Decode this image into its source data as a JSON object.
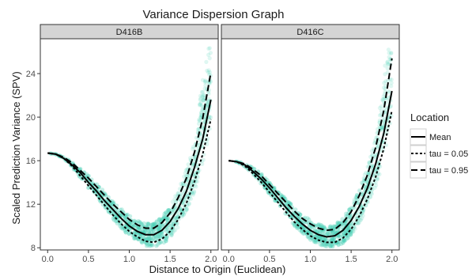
{
  "chart_data": {
    "type": "scatter",
    "title": "Variance Dispersion Graph",
    "xlabel": "Distance to Origin (Euclidean)",
    "ylabel": "Scaled Prediction Variance (SPV)",
    "xlim": [
      -0.08,
      2.08
    ],
    "ylim": [
      7.8,
      27.2
    ],
    "x_ticks": [
      0.0,
      0.5,
      1.0,
      1.5,
      2.0
    ],
    "x_tick_labels": [
      "0.0",
      "0.5",
      "1.0",
      "1.5",
      "2.0"
    ],
    "y_ticks": [
      8,
      12,
      16,
      20,
      24
    ],
    "y_tick_labels": [
      "8",
      "12",
      "16",
      "20",
      "24"
    ],
    "grid": false,
    "point_color": "#4fd1b8",
    "line_color": "#000000",
    "legend": {
      "title": "Location",
      "placement": "right",
      "entries": [
        {
          "label": "Mean",
          "line_style": "solid"
        },
        {
          "label": "tau = 0.05",
          "line_style": "dotted"
        },
        {
          "label": "tau = 0.95",
          "line_style": "dashed"
        }
      ]
    },
    "panels": [
      {
        "label": "D416B",
        "series": [
          {
            "name": "Mean",
            "style": "solid",
            "x": [
              0.0,
              0.1,
              0.2,
              0.3,
              0.4,
              0.5,
              0.6,
              0.7,
              0.8,
              0.9,
              1.0,
              1.1,
              1.2,
              1.3,
              1.4,
              1.5,
              1.6,
              1.7,
              1.8,
              1.9,
              2.0
            ],
            "y": [
              16.7,
              16.6,
              16.2,
              15.6,
              14.9,
              14.0,
              13.2,
              12.3,
              11.5,
              10.7,
              10.0,
              9.5,
              9.2,
              9.2,
              9.6,
              10.4,
              11.6,
              13.2,
              15.4,
              18.0,
              21.6
            ]
          },
          {
            "name": "tau = 0.05",
            "style": "dotted",
            "x": [
              0.0,
              0.1,
              0.2,
              0.3,
              0.4,
              0.5,
              0.6,
              0.7,
              0.8,
              0.9,
              1.0,
              1.1,
              1.2,
              1.3,
              1.4,
              1.5,
              1.6,
              1.7,
              1.8,
              1.9,
              2.0
            ],
            "y": [
              16.7,
              16.6,
              16.2,
              15.5,
              14.6,
              13.7,
              12.8,
              11.9,
              11.0,
              10.2,
              9.5,
              9.0,
              8.6,
              8.5,
              8.8,
              9.5,
              10.6,
              12.1,
              14.1,
              16.6,
              19.8
            ]
          },
          {
            "name": "tau = 0.95",
            "style": "dashed",
            "x": [
              0.0,
              0.1,
              0.2,
              0.3,
              0.4,
              0.5,
              0.6,
              0.7,
              0.8,
              0.9,
              1.0,
              1.1,
              1.2,
              1.3,
              1.4,
              1.5,
              1.6,
              1.7,
              1.8,
              1.9,
              2.0
            ],
            "y": [
              16.7,
              16.6,
              16.3,
              15.8,
              15.1,
              14.4,
              13.6,
              12.8,
              12.0,
              11.3,
              10.6,
              10.1,
              9.8,
              9.8,
              10.3,
              11.2,
              12.6,
              14.4,
              16.8,
              19.9,
              24.1
            ]
          }
        ]
      },
      {
        "label": "D416C",
        "series": [
          {
            "name": "Mean",
            "style": "solid",
            "x": [
              0.0,
              0.1,
              0.2,
              0.3,
              0.4,
              0.5,
              0.6,
              0.7,
              0.8,
              0.9,
              1.0,
              1.1,
              1.2,
              1.3,
              1.4,
              1.5,
              1.6,
              1.7,
              1.8,
              1.9,
              2.0
            ],
            "y": [
              16.0,
              15.9,
              15.6,
              15.0,
              14.3,
              13.5,
              12.6,
              11.7,
              10.9,
              10.2,
              9.6,
              9.2,
              9.0,
              9.1,
              9.6,
              10.5,
              11.8,
              13.5,
              15.7,
              18.5,
              22.4
            ]
          },
          {
            "name": "tau = 0.05",
            "style": "dotted",
            "x": [
              0.0,
              0.1,
              0.2,
              0.3,
              0.4,
              0.5,
              0.6,
              0.7,
              0.8,
              0.9,
              1.0,
              1.1,
              1.2,
              1.3,
              1.4,
              1.5,
              1.6,
              1.7,
              1.8,
              1.9,
              2.0
            ],
            "y": [
              16.0,
              15.9,
              15.5,
              14.8,
              14.0,
              13.1,
              12.2,
              11.3,
              10.4,
              9.7,
              9.1,
              8.7,
              8.5,
              8.5,
              8.9,
              9.7,
              10.9,
              12.5,
              14.5,
              17.1,
              20.6
            ]
          },
          {
            "name": "tau = 0.95",
            "style": "dashed",
            "x": [
              0.0,
              0.1,
              0.2,
              0.3,
              0.4,
              0.5,
              0.6,
              0.7,
              0.8,
              0.9,
              1.0,
              1.1,
              1.2,
              1.3,
              1.4,
              1.5,
              1.6,
              1.7,
              1.8,
              1.9,
              2.0
            ],
            "y": [
              16.0,
              15.9,
              15.7,
              15.2,
              14.6,
              13.8,
              13.0,
              12.2,
              11.4,
              10.7,
              10.2,
              9.8,
              9.6,
              9.7,
              10.3,
              11.3,
              12.8,
              14.7,
              17.2,
              20.6,
              25.4
            ]
          }
        ]
      }
    ]
  }
}
